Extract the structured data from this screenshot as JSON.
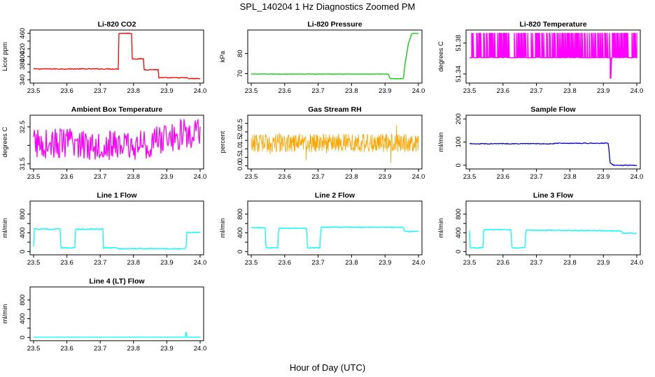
{
  "figure": {
    "title": "SPL_140204  1 Hz Diagnostics Zoomed PM",
    "xlabel": "Hour of Day (UTC)"
  },
  "chart_data": [
    {
      "type": "line",
      "title": "Li-820 CO2",
      "ylabel": "Licor ppm",
      "color": "#ff0000",
      "xlim": [
        23.5,
        24.0
      ],
      "ylim": [
        335,
        465
      ],
      "xticks": [
        23.5,
        23.6,
        23.7,
        23.8,
        23.9,
        24.0
      ],
      "xtick_labels": [
        "23.5",
        "23.6",
        "23.7",
        "23.8",
        "23.9",
        "24.0"
      ],
      "yticks": [
        340,
        360,
        380,
        400,
        420,
        440,
        460
      ],
      "ytick_labels": [
        "340",
        "",
        "380",
        "400",
        "420",
        "",
        "460"
      ],
      "noise": 1.2,
      "x": [
        23.5,
        23.755,
        23.755,
        23.795,
        23.795,
        23.83,
        23.83,
        23.875,
        23.875,
        23.96,
        23.965,
        24.0
      ],
      "y": [
        368,
        368,
        460,
        460,
        394,
        394,
        366,
        366,
        345,
        345,
        343,
        343
      ]
    },
    {
      "type": "line",
      "title": "Li-820 Pressure",
      "ylabel": "kPa",
      "color": "#00cc00",
      "xlim": [
        23.5,
        24.0
      ],
      "ylim": [
        66,
        91
      ],
      "xticks": [
        23.5,
        23.6,
        23.7,
        23.8,
        23.9,
        24.0
      ],
      "xtick_labels": [
        "23.5",
        "23.6",
        "23.7",
        "23.8",
        "23.9",
        "24.0"
      ],
      "yticks": [
        70,
        80
      ],
      "ytick_labels": [
        "70",
        "80"
      ],
      "noise": 0.1,
      "x": [
        23.5,
        23.91,
        23.915,
        23.955,
        23.96,
        23.97,
        23.98,
        24.0
      ],
      "y": [
        69.8,
        69.8,
        67.5,
        67.5,
        75,
        85,
        90,
        90
      ]
    },
    {
      "type": "line",
      "title": "Li-820 Temperature",
      "ylabel": "degrees C",
      "color": "#ff00ff",
      "xlim": [
        23.5,
        24.0
      ],
      "ylim": [
        51.33,
        51.395
      ],
      "xticks": [
        23.5,
        23.6,
        23.7,
        23.8,
        23.9,
        24.0
      ],
      "xtick_labels": [
        "23.5",
        "23.6",
        "23.7",
        "23.8",
        "23.9",
        "24.0"
      ],
      "yticks": [
        51.34,
        51.38
      ],
      "ytick_labels": [
        "51.34",
        "51.38"
      ],
      "pattern": "quantized",
      "levels": [
        51.361,
        51.393
      ],
      "dip": {
        "x": 23.922,
        "y": 51.334
      },
      "x": [
        23.5,
        24.0
      ],
      "y": [
        51.361,
        51.361
      ]
    },
    {
      "type": "line",
      "title": "Ambient Box Temperature",
      "ylabel": "degrees C",
      "color": "#ff00ff",
      "xlim": [
        23.5,
        24.0
      ],
      "ylim": [
        31.4,
        32.78
      ],
      "xticks": [
        23.5,
        23.6,
        23.7,
        23.8,
        23.9,
        24.0
      ],
      "xtick_labels": [
        "23.5",
        "23.6",
        "23.7",
        "23.8",
        "23.9",
        "24.0"
      ],
      "yticks": [
        31.5,
        32.0,
        32.5
      ],
      "ytick_labels": [
        "31.5",
        "",
        "32.5"
      ],
      "noise": 0.42,
      "x": [
        23.5,
        23.6,
        23.7,
        23.8,
        23.85,
        23.9,
        23.95,
        24.0
      ],
      "y": [
        32.05,
        32.05,
        32.02,
        31.98,
        32.05,
        32.2,
        32.3,
        32.3
      ]
    },
    {
      "type": "line",
      "title": "Gas Stream RH",
      "ylabel": "percent",
      "color": "#ffa500",
      "xlim": [
        23.5,
        24.0
      ],
      "ylim": [
        -0.1,
        2.9
      ],
      "xticks": [
        23.5,
        23.6,
        23.7,
        23.8,
        23.9,
        24.0
      ],
      "xtick_labels": [
        "23.5",
        "23.6",
        "23.7",
        "23.8",
        "23.9",
        "24.0"
      ],
      "yticks": [
        0.0,
        0.5,
        1.0,
        1.5,
        2.0,
        2.5
      ],
      "ytick_labels": [
        "0.0",
        "0.5",
        "1.0",
        "1.5",
        "2.0",
        "2.5"
      ],
      "noise": 0.55,
      "pattern": "dense",
      "x": [
        23.5,
        24.0
      ],
      "y": [
        1.35,
        1.35
      ]
    },
    {
      "type": "line",
      "title": "Sample Flow",
      "ylabel": "ml/min",
      "color": "#0000cc",
      "xlim": [
        23.5,
        24.0
      ],
      "ylim": [
        -10,
        210
      ],
      "xticks": [
        23.5,
        23.6,
        23.7,
        23.8,
        23.9,
        24.0
      ],
      "xtick_labels": [
        "23.5",
        "23.6",
        "23.7",
        "23.8",
        "23.9",
        "24.0"
      ],
      "yticks": [
        0,
        100,
        200
      ],
      "ytick_labels": [
        "0",
        "100",
        "200"
      ],
      "noise": 1.5,
      "x": [
        23.5,
        23.75,
        23.76,
        23.915,
        23.92,
        23.93,
        24.0
      ],
      "y": [
        93,
        93,
        95,
        95,
        10,
        0,
        0
      ]
    },
    {
      "type": "line",
      "title": "Line 1 Flow",
      "ylabel": "ml/min",
      "color": "#00ffff",
      "xlim": [
        23.5,
        24.0
      ],
      "ylim": [
        -40,
        1050
      ],
      "xticks": [
        23.5,
        23.6,
        23.7,
        23.8,
        23.9,
        24.0
      ],
      "xtick_labels": [
        "23.5",
        "23.6",
        "23.7",
        "23.8",
        "23.9",
        "24.0"
      ],
      "yticks": [
        0,
        200,
        400,
        600,
        800
      ],
      "ytick_labels": [
        "0",
        "",
        "400",
        "",
        "800"
      ],
      "noise": 10,
      "x": [
        23.5,
        23.502,
        23.58,
        23.582,
        23.624,
        23.626,
        23.708,
        23.71,
        23.75,
        23.752,
        23.955,
        23.958,
        23.96,
        24.0
      ],
      "y": [
        100,
        480,
        480,
        80,
        80,
        480,
        480,
        80,
        80,
        60,
        60,
        100,
        410,
        410
      ]
    },
    {
      "type": "line",
      "title": "Line 2 Flow",
      "ylabel": "ml/min",
      "color": "#00ffff",
      "xlim": [
        23.5,
        24.0
      ],
      "ylim": [
        -40,
        1050
      ],
      "xticks": [
        23.5,
        23.6,
        23.7,
        23.8,
        23.9,
        24.0
      ],
      "xtick_labels": [
        "23.5",
        "23.6",
        "23.7",
        "23.8",
        "23.9",
        "24.0"
      ],
      "yticks": [
        0,
        200,
        400,
        600,
        800
      ],
      "ytick_labels": [
        "0",
        "",
        "400",
        "",
        "800"
      ],
      "noise": 10,
      "x": [
        23.5,
        23.542,
        23.544,
        23.58,
        23.582,
        23.666,
        23.668,
        23.706,
        23.708,
        23.955,
        23.958,
        24.0
      ],
      "y": [
        510,
        510,
        80,
        80,
        500,
        500,
        80,
        80,
        520,
        520,
        430,
        430
      ]
    },
    {
      "type": "line",
      "title": "Line 3 Flow",
      "ylabel": "ml/min",
      "color": "#00ffff",
      "xlim": [
        23.5,
        24.0
      ],
      "ylim": [
        -40,
        1050
      ],
      "xticks": [
        23.5,
        23.6,
        23.7,
        23.8,
        23.9,
        24.0
      ],
      "xtick_labels": [
        "23.5",
        "23.6",
        "23.7",
        "23.8",
        "23.9",
        "24.0"
      ],
      "yticks": [
        0,
        200,
        400,
        600,
        800
      ],
      "ytick_labels": [
        "0",
        "",
        "400",
        "",
        "800"
      ],
      "noise": 10,
      "x": [
        23.5,
        23.502,
        23.504,
        23.54,
        23.542,
        23.624,
        23.626,
        23.666,
        23.668,
        23.955,
        23.958,
        24.0
      ],
      "y": [
        440,
        80,
        80,
        80,
        470,
        470,
        80,
        80,
        460,
        440,
        390,
        390
      ]
    },
    {
      "type": "line",
      "title": "Line 4 (LT) Flow",
      "ylabel": "ml/min",
      "color": "#00ffff",
      "xlim": [
        23.5,
        24.0
      ],
      "ylim": [
        -40,
        1050
      ],
      "xticks": [
        23.5,
        23.6,
        23.7,
        23.8,
        23.9,
        24.0
      ],
      "xtick_labels": [
        "23.5",
        "23.6",
        "23.7",
        "23.8",
        "23.9",
        "24.0"
      ],
      "yticks": [
        0,
        200,
        400,
        600,
        800
      ],
      "ytick_labels": [
        "0",
        "",
        "400",
        "",
        "800"
      ],
      "noise": 2,
      "spike": {
        "x": 23.957,
        "y": 120
      },
      "x": [
        23.5,
        24.0
      ],
      "y": [
        5,
        5
      ]
    }
  ]
}
